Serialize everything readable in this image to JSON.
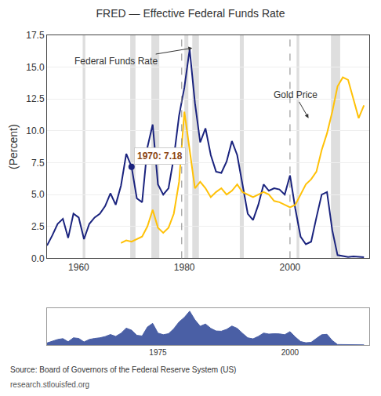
{
  "chart_data": [
    {
      "type": "line",
      "title": "FRED — Effective Federal Funds Rate",
      "ylabel": "(Percent)",
      "xlim": [
        1954,
        2015
      ],
      "xticks": [
        1960,
        1980,
        2000
      ],
      "ylim": [
        0,
        17.5
      ],
      "yticks": [
        {
          "value": 0,
          "label": "0.0"
        },
        2.5,
        {
          "value": 5,
          "label": "5.0"
        },
        7.5,
        {
          "value": 10,
          "label": "10.0"
        },
        12.5,
        {
          "value": 15,
          "label": "15.0"
        },
        17.5
      ],
      "grid": true,
      "series": [
        {
          "color": "#1a237e",
          "x": [
            1954,
            1955,
            1956,
            1957,
            1958,
            1959,
            1960,
            1961,
            1962,
            1963,
            1964,
            1965,
            1966,
            1967,
            1968,
            1969,
            1970,
            1971,
            1972,
            1973,
            1974,
            1975,
            1976,
            1977,
            1978,
            1979,
            1980,
            1981,
            1982,
            1983,
            1984,
            1985,
            1986,
            1987,
            1988,
            1989,
            1990,
            1991,
            1992,
            1993,
            1994,
            1995,
            1996,
            1997,
            1998,
            1999,
            2000,
            2001,
            2002,
            2003,
            2004,
            2005,
            2006,
            2007,
            2008,
            2009,
            2010,
            2011,
            2012,
            2013,
            2014
          ],
          "values": [
            1.0,
            1.8,
            2.7,
            3.1,
            1.6,
            3.5,
            3.2,
            1.5,
            2.7,
            3.2,
            3.5,
            4.1,
            5.1,
            4.2,
            5.7,
            8.2,
            7.18,
            4.7,
            4.4,
            8.7,
            10.5,
            5.8,
            5.0,
            5.5,
            7.9,
            11.2,
            13.4,
            16.4,
            12.2,
            9.1,
            10.2,
            8.1,
            6.8,
            6.7,
            7.6,
            9.2,
            8.1,
            5.7,
            3.5,
            3.0,
            4.2,
            5.8,
            5.3,
            5.5,
            5.4,
            5.0,
            6.5,
            3.9,
            1.7,
            1.1,
            1.3,
            3.2,
            5.0,
            5.2,
            2.2,
            0.25,
            0.18,
            0.1,
            0.14,
            0.11,
            0.09
          ]
        },
        {
          "color": "#ffc107",
          "x": [
            1968,
            1969,
            1970,
            1971,
            1972,
            1973,
            1974,
            1975,
            1976,
            1977,
            1978,
            1979,
            1980,
            1981,
            1982,
            1983,
            1984,
            1985,
            1986,
            1987,
            1988,
            1989,
            1990,
            1991,
            1992,
            1993,
            1994,
            1995,
            1996,
            1997,
            1998,
            1999,
            2000,
            2001,
            2002,
            2003,
            2004,
            2005,
            2006,
            2007,
            2008,
            2009,
            2010,
            2011,
            2012,
            2013,
            2014
          ],
          "values": [
            1.2,
            1.4,
            1.3,
            1.5,
            1.7,
            2.5,
            3.8,
            2.4,
            2.0,
            2.4,
            3.5,
            6.0,
            11.5,
            8.5,
            5.5,
            6.0,
            5.5,
            4.8,
            5.2,
            5.5,
            5.0,
            5.3,
            5.8,
            5.2,
            5.0,
            4.8,
            5.0,
            5.2,
            5.0,
            4.5,
            4.4,
            4.2,
            4.0,
            4.2,
            5.0,
            5.8,
            6.2,
            6.8,
            8.5,
            9.8,
            11.5,
            13.5,
            14.2,
            14.0,
            12.5,
            11.0,
            12.0
          ]
        }
      ],
      "recession_bands": [
        [
          1960.75,
          1961.25
        ],
        [
          1969.75,
          1970.75
        ],
        [
          1973.75,
          1975.25
        ],
        [
          1980.0,
          1980.75
        ],
        [
          1981.5,
          1982.75
        ],
        [
          1990.5,
          1991.25
        ],
        [
          2001.25,
          2001.75
        ],
        [
          2007.75,
          2009.5
        ]
      ],
      "vlines": [
        1979.5,
        2000.0
      ],
      "annotations": [
        {
          "text": "1970: 7.18",
          "x": 1970,
          "y": 7.18,
          "marker": "circle",
          "color": "#1a237e"
        },
        {
          "text": "Federal Funds Rate",
          "x": 1967,
          "y": 15.5,
          "arrow_x": 1981.5,
          "arrow_y": 16.5
        },
        {
          "text": "Gold Price",
          "x": 2001,
          "y": 12.8,
          "arrow_x": 2003.5,
          "arrow_y": 11.0
        }
      ],
      "source": "Source: Board of Governors of the Federal Reserve System (US)",
      "url": "research.stlouisfed.org"
    },
    {
      "type": "area",
      "xlim": [
        1954,
        2015
      ],
      "xticks": [
        1975,
        2000
      ],
      "ylim": [
        0,
        18
      ],
      "tick_labels": "x",
      "color": "#4a5fa5",
      "x": [
        1954,
        1955,
        1956,
        1957,
        1958,
        1959,
        1960,
        1961,
        1962,
        1963,
        1964,
        1965,
        1966,
        1967,
        1968,
        1969,
        1970,
        1971,
        1972,
        1973,
        1974,
        1975,
        1976,
        1977,
        1978,
        1979,
        1980,
        1981,
        1982,
        1983,
        1984,
        1985,
        1986,
        1987,
        1988,
        1989,
        1990,
        1991,
        1992,
        1993,
        1994,
        1995,
        1996,
        1997,
        1998,
        1999,
        2000,
        2001,
        2002,
        2003,
        2004,
        2005,
        2006,
        2007,
        2008,
        2009,
        2010,
        2011,
        2012,
        2013,
        2014
      ],
      "values": [
        1.0,
        1.8,
        2.7,
        3.1,
        1.6,
        3.5,
        3.2,
        1.5,
        2.7,
        3.2,
        3.5,
        4.1,
        5.1,
        4.2,
        5.7,
        8.2,
        7.18,
        4.7,
        4.4,
        8.7,
        10.5,
        5.8,
        5.0,
        5.5,
        7.9,
        11.2,
        13.4,
        16.4,
        12.2,
        9.1,
        10.2,
        8.1,
        6.8,
        6.7,
        7.6,
        9.2,
        8.1,
        5.7,
        3.5,
        3.0,
        4.2,
        5.8,
        5.3,
        5.5,
        5.4,
        5.0,
        6.5,
        3.9,
        1.7,
        1.1,
        1.3,
        3.2,
        5.0,
        5.2,
        2.2,
        0.25,
        0.18,
        0.1,
        0.14,
        0.11,
        0.09
      ]
    }
  ]
}
